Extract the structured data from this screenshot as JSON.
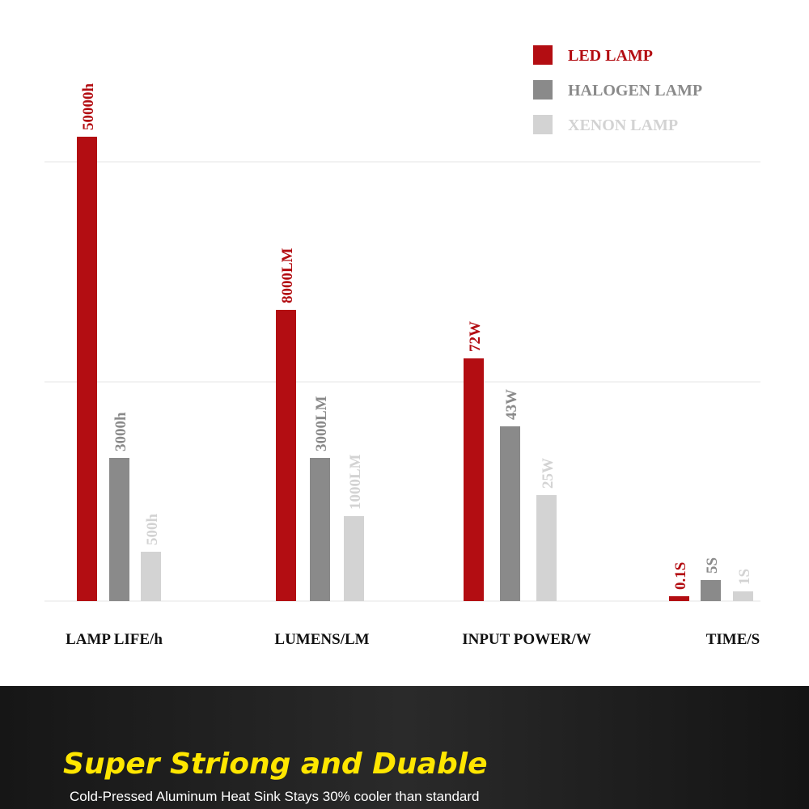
{
  "legend": [
    "LED LAMP",
    "HALOGEN LAMP",
    "XENON LAMP"
  ],
  "groups": [
    {
      "label": "LAMP LIFE/h",
      "bars": [
        "50000h",
        "3000h",
        "500h"
      ]
    },
    {
      "label": "LUMENS/LM",
      "bars": [
        "8000LM",
        "3000LM",
        "1000LM"
      ]
    },
    {
      "label": "INPUT POWER/W",
      "bars": [
        "72W",
        "43W",
        "25W"
      ]
    },
    {
      "label": "TIME/S",
      "bars": [
        "0.1S",
        "5S",
        "1S"
      ]
    }
  ],
  "banner": {
    "title": "Super Striong and Duable",
    "subtitle": "Cold-Pressed Aluminum Heat Sink Stays 30% cooler than standard"
  }
}
